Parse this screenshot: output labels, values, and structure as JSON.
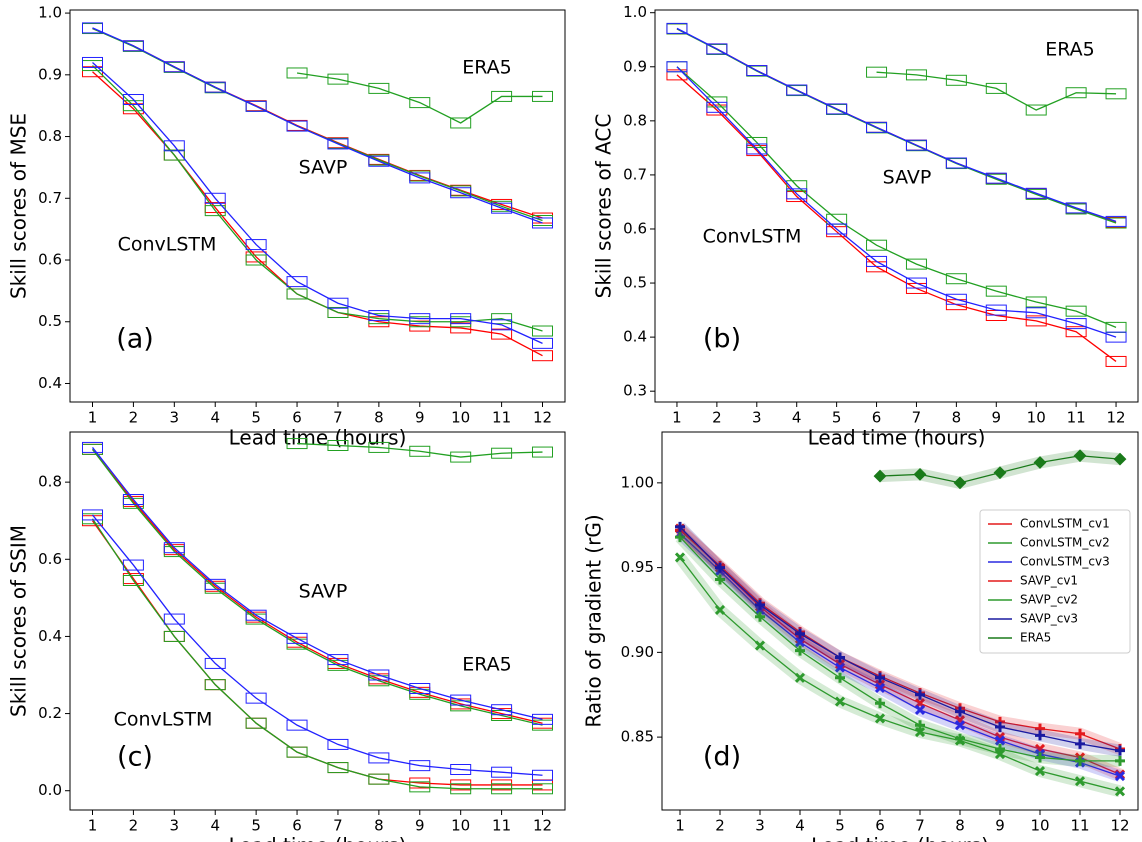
{
  "chart_data": [
    {
      "type": "box",
      "panel_label": "(a)",
      "xlabel": "Lead time (hours)",
      "ylabel": "Skill scores of MSE",
      "annotations": [
        "ERA5",
        "SAVP",
        "ConvLSTM"
      ],
      "x": [
        1,
        2,
        3,
        4,
        5,
        6,
        7,
        8,
        9,
        10,
        11,
        12
      ],
      "xlim": [
        0.45,
        12.55
      ],
      "xticks": [
        1,
        2,
        3,
        4,
        5,
        6,
        7,
        8,
        9,
        10,
        11,
        12
      ],
      "ylim": [
        0.37,
        1.005
      ],
      "yticks": [
        0.4,
        0.5,
        0.6,
        0.7,
        0.8,
        0.9,
        {
          "value": 1.0,
          "label": "1.0"
        }
      ],
      "series": [
        {
          "color": "#22a022",
          "values": [
            null,
            null,
            null,
            null,
            null,
            0.903,
            0.893,
            0.878,
            0.855,
            0.822,
            0.865,
            0.865
          ]
        },
        {
          "color": "#ff0000",
          "values": [
            0.975,
            0.947,
            0.913,
            0.88,
            0.85,
            0.818,
            0.79,
            0.763,
            0.737,
            0.713,
            0.69,
            0.668
          ]
        },
        {
          "color": "#22a022",
          "values": [
            0.975,
            0.946,
            0.912,
            0.879,
            0.849,
            0.817,
            0.789,
            0.762,
            0.736,
            0.712,
            0.687,
            0.664
          ]
        },
        {
          "color": "#2222ff",
          "values": [
            0.976,
            0.947,
            0.913,
            0.88,
            0.849,
            0.817,
            0.788,
            0.76,
            0.733,
            0.709,
            0.684,
            0.66
          ]
        },
        {
          "color": "#ff0000",
          "values": [
            0.905,
            0.845,
            0.77,
            0.685,
            0.605,
            0.545,
            0.515,
            0.5,
            0.493,
            0.49,
            0.48,
            0.445
          ]
        },
        {
          "color": "#22a022",
          "values": [
            0.915,
            0.85,
            0.77,
            0.68,
            0.6,
            0.545,
            0.515,
            0.505,
            0.5,
            0.5,
            0.505,
            0.485
          ]
        },
        {
          "color": "#2222ff",
          "values": [
            0.92,
            0.86,
            0.785,
            0.7,
            0.625,
            0.565,
            0.53,
            0.51,
            0.505,
            0.505,
            0.495,
            0.465
          ]
        }
      ]
    },
    {
      "type": "box",
      "panel_label": "(b)",
      "xlabel": "Lead time (hours)",
      "ylabel": "Skill scores of ACC",
      "annotations": [
        "ERA5",
        "SAVP",
        "ConvLSTM"
      ],
      "x": [
        1,
        2,
        3,
        4,
        5,
        6,
        7,
        8,
        9,
        10,
        11,
        12
      ],
      "xlim": [
        0.45,
        12.55
      ],
      "xticks": [
        1,
        2,
        3,
        4,
        5,
        6,
        7,
        8,
        9,
        10,
        11,
        12
      ],
      "ylim": [
        0.28,
        1.005
      ],
      "yticks": [
        0.3,
        0.4,
        0.5,
        0.6,
        0.7,
        0.8,
        0.9,
        {
          "value": 1.0,
          "label": "1.0"
        }
      ],
      "series": [
        {
          "color": "#22a022",
          "values": [
            null,
            null,
            null,
            null,
            null,
            0.89,
            0.885,
            0.875,
            0.86,
            0.82,
            0.852,
            0.85
          ]
        },
        {
          "color": "#ff0000",
          "values": [
            0.97,
            0.933,
            0.893,
            0.857,
            0.822,
            0.788,
            0.755,
            0.722,
            0.693,
            0.665,
            0.638,
            0.612
          ]
        },
        {
          "color": "#22a022",
          "values": [
            0.97,
            0.932,
            0.892,
            0.856,
            0.821,
            0.787,
            0.754,
            0.721,
            0.692,
            0.664,
            0.637,
            0.611
          ]
        },
        {
          "color": "#2222ff",
          "values": [
            0.971,
            0.933,
            0.893,
            0.857,
            0.822,
            0.788,
            0.755,
            0.722,
            0.694,
            0.666,
            0.639,
            0.614
          ]
        },
        {
          "color": "#ff0000",
          "values": [
            0.885,
            0.82,
            0.745,
            0.66,
            0.595,
            0.53,
            0.49,
            0.46,
            0.44,
            0.43,
            0.41,
            0.355
          ]
        },
        {
          "color": "#22a022",
          "values": [
            0.9,
            0.835,
            0.76,
            0.68,
            0.618,
            0.57,
            0.535,
            0.508,
            0.485,
            0.465,
            0.448,
            0.418
          ]
        },
        {
          "color": "#2222ff",
          "values": [
            0.9,
            0.825,
            0.748,
            0.665,
            0.6,
            0.54,
            0.5,
            0.47,
            0.45,
            0.445,
            0.425,
            0.4
          ]
        }
      ]
    },
    {
      "type": "box",
      "panel_label": "(c)",
      "xlabel": "Lead time (hours)",
      "ylabel": "Skill scores of SSIM",
      "annotations": [
        "ERA5",
        "SAVP",
        "ConvLSTM"
      ],
      "x": [
        1,
        2,
        3,
        4,
        5,
        6,
        7,
        8,
        9,
        10,
        11,
        12
      ],
      "xlim": [
        0.45,
        12.55
      ],
      "xticks": [
        1,
        2,
        3,
        4,
        5,
        6,
        7,
        8,
        9,
        10,
        11,
        12
      ],
      "ylim": [
        -0.05,
        0.93
      ],
      "yticks": [
        {
          "value": 0,
          "label": "0.0"
        },
        0.2,
        0.4,
        0.6,
        0.8
      ],
      "series": [
        {
          "color": "#22a022",
          "values": [
            null,
            null,
            null,
            null,
            null,
            0.9,
            0.895,
            0.89,
            0.88,
            0.865,
            0.875,
            0.878
          ]
        },
        {
          "color": "#ff0000",
          "values": [
            0.885,
            0.75,
            0.625,
            0.53,
            0.45,
            0.385,
            0.33,
            0.29,
            0.255,
            0.225,
            0.2,
            0.175
          ]
        },
        {
          "color": "#22a022",
          "values": [
            0.885,
            0.745,
            0.62,
            0.525,
            0.445,
            0.38,
            0.325,
            0.285,
            0.25,
            0.22,
            0.195,
            0.17
          ]
        },
        {
          "color": "#2222ff",
          "values": [
            0.89,
            0.755,
            0.63,
            0.535,
            0.455,
            0.395,
            0.34,
            0.3,
            0.265,
            0.235,
            0.21,
            0.185
          ]
        },
        {
          "color": "#ff0000",
          "values": [
            0.7,
            0.55,
            0.4,
            0.275,
            0.175,
            0.1,
            0.06,
            0.03,
            0.02,
            0.015,
            0.015,
            0.015
          ]
        },
        {
          "color": "#22a022",
          "values": [
            0.705,
            0.545,
            0.4,
            0.275,
            0.175,
            0.1,
            0.06,
            0.03,
            0.01,
            0.005,
            0.005,
            0.005
          ]
        },
        {
          "color": "#2222ff",
          "values": [
            0.715,
            0.585,
            0.445,
            0.33,
            0.24,
            0.17,
            0.12,
            0.085,
            0.065,
            0.055,
            0.048,
            0.04
          ]
        }
      ]
    },
    {
      "type": "line",
      "panel_label": "(d)",
      "xlabel": "Lead time (hours)",
      "ylabel": "Ratio of gradient (rG)",
      "legend": "upper right",
      "x": [
        1,
        2,
        3,
        4,
        5,
        6,
        7,
        8,
        9,
        10,
        11,
        12
      ],
      "xlim": [
        0.55,
        12.45
      ],
      "xticks": [
        1,
        2,
        3,
        4,
        5,
        6,
        7,
        8,
        9,
        10,
        11,
        12
      ],
      "ylim": [
        0.807,
        1.03
      ],
      "yticks": [
        0.85,
        {
          "value": 0.9,
          "label": "0.90"
        },
        0.95,
        {
          "value": 1.0,
          "label": "1.00"
        }
      ],
      "series": [
        {
          "name": "ConvLSTM_cv1",
          "color": "#e41a1c",
          "marker": "x",
          "values": [
            0.973,
            0.95,
            0.927,
            0.908,
            0.893,
            0.881,
            0.87,
            0.86,
            0.85,
            0.843,
            0.838,
            0.828
          ]
        },
        {
          "name": "ConvLSTM_cv2",
          "color": "#2e9a2e",
          "marker": "x",
          "values": [
            0.956,
            0.925,
            0.904,
            0.885,
            0.871,
            0.861,
            0.853,
            0.848,
            0.84,
            0.83,
            0.824,
            0.818
          ]
        },
        {
          "name": "ConvLSTM_cv3",
          "color": "#2a2ae0",
          "marker": "x",
          "values": [
            0.97,
            0.948,
            0.925,
            0.906,
            0.891,
            0.879,
            0.866,
            0.857,
            0.848,
            0.84,
            0.835,
            0.827
          ]
        },
        {
          "name": "SAVP_cv1",
          "color": "#e41a1c",
          "marker": "plus",
          "values": [
            0.972,
            0.951,
            0.929,
            0.912,
            0.897,
            0.886,
            0.876,
            0.867,
            0.859,
            0.855,
            0.852,
            0.843
          ]
        },
        {
          "name": "SAVP_cv2",
          "color": "#2e9a2e",
          "marker": "plus",
          "values": [
            0.968,
            0.943,
            0.921,
            0.901,
            0.885,
            0.87,
            0.857,
            0.849,
            0.843,
            0.838,
            0.836,
            0.836
          ]
        },
        {
          "name": "SAVP_cv3",
          "color": "#1a1aa0",
          "marker": "plus",
          "values": [
            0.974,
            0.95,
            0.928,
            0.911,
            0.897,
            0.885,
            0.875,
            0.865,
            0.856,
            0.851,
            0.846,
            0.842
          ]
        },
        {
          "name": "ERA5",
          "color": "#1a7a1a",
          "marker": "diamond",
          "values": [
            null,
            null,
            null,
            null,
            null,
            1.004,
            1.005,
            1.0,
            1.006,
            1.012,
            1.016,
            1.014
          ]
        }
      ]
    }
  ]
}
